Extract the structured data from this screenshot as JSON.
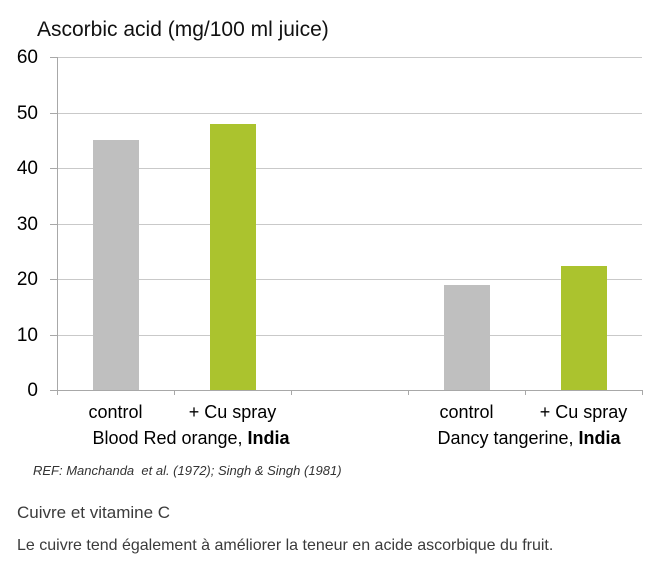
{
  "chart_data": {
    "type": "bar",
    "title": "Ascorbic acid (mg/100 ml juice)",
    "xlabel": "",
    "ylabel": "",
    "ylim": [
      0,
      60
    ],
    "yticks": [
      0,
      10,
      20,
      30,
      40,
      50,
      60
    ],
    "grid": true,
    "legend": false,
    "bar_colors": {
      "control": "#bfbfbf",
      "cu_spray": "#abc32e"
    },
    "groups": [
      {
        "name": "Blood Red orange, India",
        "label_regular": "Blood Red orange, ",
        "label_bold": "India",
        "bars": [
          {
            "category": "control",
            "value": 45,
            "color_key": "control"
          },
          {
            "category": "+ Cu spray",
            "value": 48,
            "color_key": "cu_spray"
          }
        ]
      },
      {
        "name": "Dancy tangerine, India",
        "label_regular": "Dancy tangerine, ",
        "label_bold": "India",
        "bars": [
          {
            "category": "control",
            "value": 19,
            "color_key": "control"
          },
          {
            "category": "+ Cu spray",
            "value": 22.4,
            "color_key": "cu_spray"
          }
        ]
      }
    ],
    "reference": "REF: Manchanda  et al. (1972); Singh & Singh (1981)"
  },
  "footer": {
    "heading": "Cuivre et vitamine C",
    "body": "Le cuivre tend également à améliorer la teneur en acide ascorbique du fruit."
  }
}
